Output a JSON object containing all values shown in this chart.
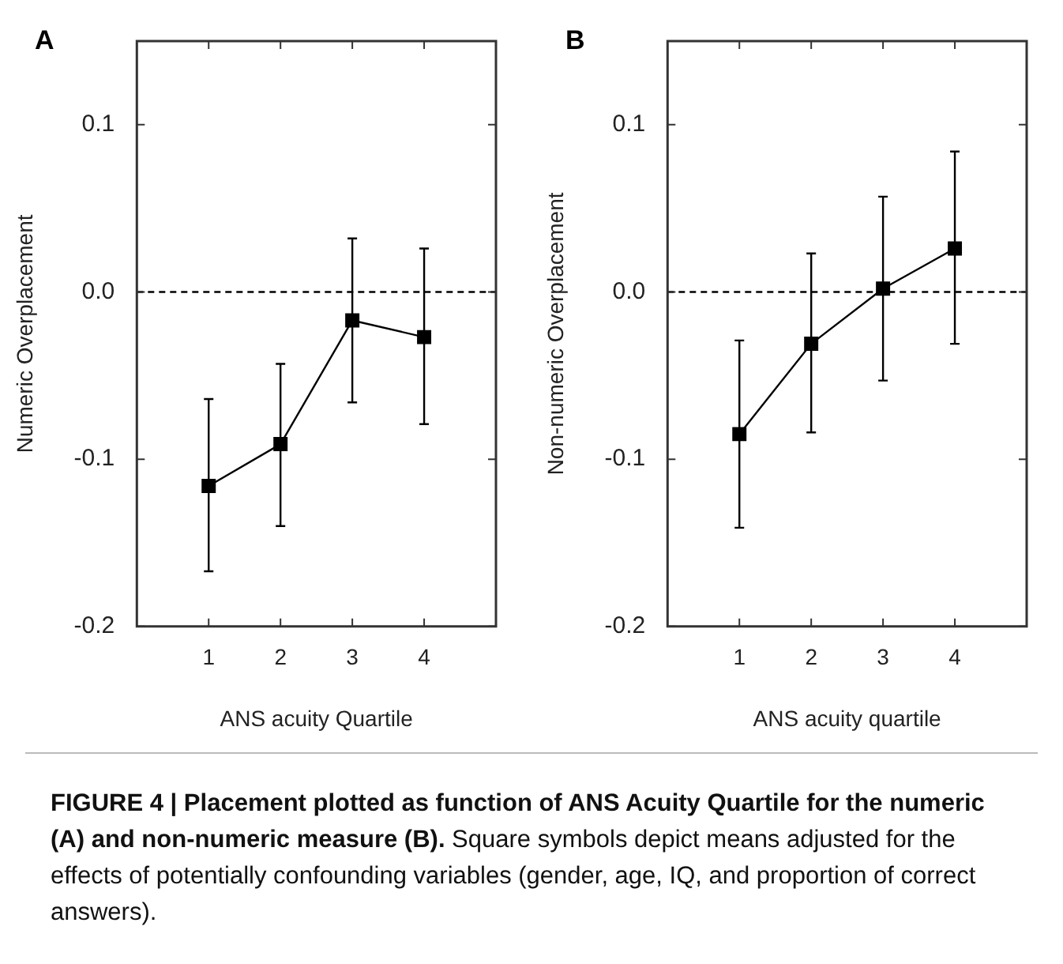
{
  "chart_data": [
    {
      "type": "line",
      "title": "A",
      "xlabel": "ANS acuity Quartile",
      "ylabel": "Numeric Overplacement",
      "x": [
        1,
        2,
        3,
        4
      ],
      "xlim": [
        0,
        5
      ],
      "xticks": [
        1,
        2,
        3,
        4
      ],
      "ylim": [
        -0.2,
        0.15
      ],
      "yticks": [
        {
          "value": -0.2,
          "label": "-0.2"
        },
        {
          "value": -0.1,
          "label": "-0.1"
        },
        {
          "value": 0,
          "label": "0.0"
        },
        {
          "value": 0.1,
          "label": "0.1"
        }
      ],
      "grid": false,
      "legend": false,
      "marker": "square",
      "line_style": "solid",
      "series": [
        {
          "color": "#000000",
          "values": [
            -0.116,
            -0.091,
            -0.017,
            -0.027
          ],
          "errors": [
            [
              -0.167,
              -0.064
            ],
            [
              -0.14,
              -0.043
            ],
            [
              -0.066,
              0.032
            ],
            [
              -0.079,
              0.026
            ]
          ]
        }
      ],
      "ref_lines": [
        {
          "axis": "y",
          "value": 0,
          "line_style": "dashed",
          "color": "#000000"
        }
      ],
      "annotations": [
        "FIGURE 4 | Placement plotted as function of ANS Acuity Quartile for the numeric (A) and non-numeric measure (B).",
        "Square symbols depict means adjusted for the effects of potentially confounding variables (gender, age, IQ, and proportion of correct answers)."
      ]
    },
    {
      "type": "line",
      "title": "B",
      "xlabel": "ANS acuity quartile",
      "ylabel": "Non-numeric Overplacement",
      "x": [
        1,
        2,
        3,
        4
      ],
      "xlim": [
        0,
        5
      ],
      "xticks": [
        1,
        2,
        3,
        4
      ],
      "ylim": [
        -0.2,
        0.15
      ],
      "yticks": [
        {
          "value": -0.2,
          "label": "-0.2"
        },
        {
          "value": -0.1,
          "label": "-0.1"
        },
        {
          "value": 0,
          "label": "0.0"
        },
        {
          "value": 0.1,
          "label": "0.1"
        }
      ],
      "grid": false,
      "legend": false,
      "marker": "square",
      "line_style": "solid",
      "series": [
        {
          "color": "#000000",
          "values": [
            -0.085,
            -0.031,
            0.002,
            0.026
          ],
          "errors": [
            [
              -0.141,
              -0.029
            ],
            [
              -0.084,
              0.023
            ],
            [
              -0.053,
              0.057
            ],
            [
              -0.031,
              0.084
            ]
          ]
        }
      ],
      "ref_lines": [
        {
          "axis": "y",
          "value": 0,
          "line_style": "dashed",
          "color": "#000000"
        }
      ]
    }
  ]
}
